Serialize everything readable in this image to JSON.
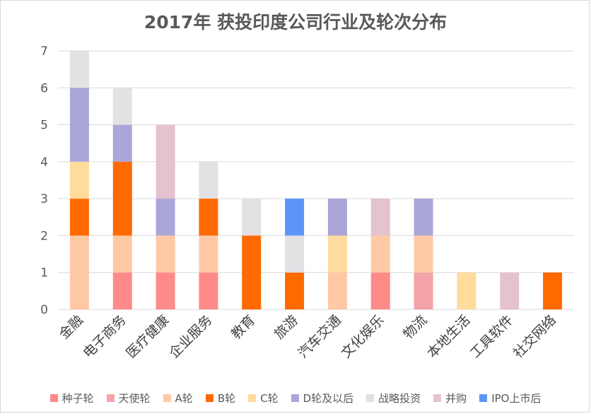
{
  "chart_data": {
    "type": "bar",
    "stacked": true,
    "title": "2017年 获投印度公司行业及轮次分布",
    "xlabel": "",
    "ylabel": "",
    "ylim": [
      0,
      7
    ],
    "yticks": [
      0,
      1,
      2,
      3,
      4,
      5,
      6,
      7
    ],
    "grid": true,
    "legend_position": "bottom",
    "categories": [
      "金融",
      "电子商务",
      "医疗健康",
      "企业服务",
      "教育",
      "旅游",
      "汽车交通",
      "文化娱乐",
      "物流",
      "本地生活",
      "工具软件",
      "社交网络"
    ],
    "series": [
      {
        "name": "种子轮",
        "color": "#ff8a8a",
        "values": [
          0,
          1,
          1,
          1,
          0,
          0,
          0,
          1,
          0,
          0,
          0,
          0
        ]
      },
      {
        "name": "天使轮",
        "color": "#f4a3a8",
        "values": [
          0,
          0,
          0,
          0,
          0,
          0,
          0,
          0,
          1,
          0,
          0,
          0
        ]
      },
      {
        "name": "A轮",
        "color": "#ffc9a5",
        "values": [
          2,
          1,
          1,
          1,
          0,
          0,
          1,
          1,
          1,
          0,
          0,
          0
        ]
      },
      {
        "name": "B轮",
        "color": "#ff6a00",
        "values": [
          1,
          2,
          0,
          1,
          2,
          1,
          0,
          0,
          0,
          0,
          0,
          1
        ]
      },
      {
        "name": "C轮",
        "color": "#ffdb9e",
        "values": [
          1,
          0,
          0,
          0,
          0,
          0,
          1,
          0,
          0,
          1,
          0,
          0
        ]
      },
      {
        "name": "D轮及以后",
        "color": "#aaa6d8",
        "values": [
          2,
          1,
          1,
          0,
          0,
          0,
          1,
          0,
          1,
          0,
          0,
          0
        ]
      },
      {
        "name": "战略投资",
        "color": "#e3e1e3",
        "values": [
          1,
          1,
          0,
          1,
          1,
          1,
          0,
          0,
          0,
          0,
          0,
          0
        ]
      },
      {
        "name": "并购",
        "color": "#e4c2d0",
        "values": [
          0,
          0,
          2,
          0,
          0,
          0,
          0,
          1,
          0,
          0,
          1,
          0
        ]
      },
      {
        "name": "IPO上市后",
        "color": "#5b95f5",
        "values": [
          0,
          0,
          0,
          0,
          0,
          1,
          0,
          0,
          0,
          0,
          0,
          0
        ]
      }
    ]
  }
}
